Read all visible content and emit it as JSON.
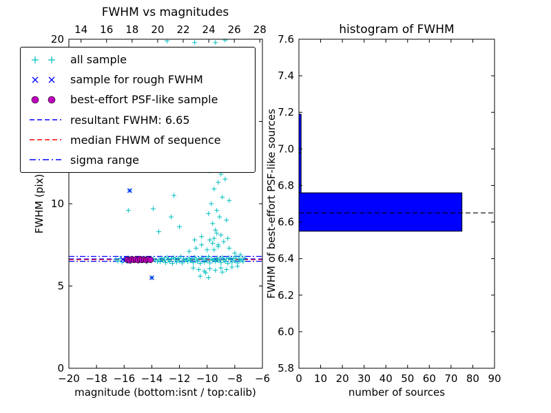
{
  "legend": {
    "items": [
      {
        "label": "all sample",
        "marker": "plus",
        "color": "#00bfbf"
      },
      {
        "label": "sample for rough FWHM",
        "marker": "x",
        "color": "#0000ff"
      },
      {
        "label": "best-effort PSF-like sample",
        "marker": "circle",
        "color": "#bf00bf"
      },
      {
        "label": "resultant FWHM: 6.65",
        "marker": "dashed",
        "color": "#0000ff"
      },
      {
        "label": "median FHWM of sequence",
        "marker": "dashed",
        "color": "#ff0000"
      },
      {
        "label": "sigma range",
        "marker": "dashdot",
        "color": "#0000ff"
      }
    ]
  },
  "chart_data": [
    {
      "type": "scatter",
      "title": "FWHM vs magnitudes",
      "xlabel": "magnitude (bottom:isnt / top:calib)",
      "ylabel": "FWHM (pix)",
      "xlim": [
        -20,
        -6
      ],
      "ylim": [
        0,
        20
      ],
      "top_xlim": [
        13.05,
        28.2
      ],
      "x_tick_values": [
        -20,
        -18,
        -16,
        -14,
        -12,
        -10,
        -8,
        -6
      ],
      "x_tick_labels": [
        "−20",
        "−18",
        "−16",
        "−14",
        "−12",
        "−10",
        "−8",
        "−6"
      ],
      "top_tick_values": [
        14,
        16,
        18,
        20,
        22,
        24,
        26,
        28
      ],
      "top_tick_labels": [
        "14",
        "16",
        "18",
        "20",
        "22",
        "24",
        "26",
        "28"
      ],
      "y_tick_values": [
        0,
        5,
        10,
        15,
        20
      ],
      "y_tick_labels": [
        "0",
        "5",
        "10",
        "15",
        "20"
      ],
      "hlines": [
        {
          "name": "resultant-fwhm",
          "y": 6.65,
          "style": "dashed",
          "color": "#0000ff"
        },
        {
          "name": "median-fhwm",
          "y": 6.6,
          "style": "dashed",
          "color": "#ff0000"
        },
        {
          "name": "sigma-upper",
          "y": 6.8,
          "style": "dashdot",
          "color": "#0000ff"
        },
        {
          "name": "sigma-lower",
          "y": 6.5,
          "style": "dashdot",
          "color": "#0000ff"
        }
      ],
      "series": [
        {
          "name": "all sample",
          "marker": "+",
          "color": "#00bfbf",
          "points": [
            [
              -16.6,
              6.6
            ],
            [
              -16.45,
              6.52
            ],
            [
              -16.3,
              6.67
            ],
            [
              -16.15,
              6.45
            ],
            [
              -16.0,
              6.62
            ],
            [
              -15.85,
              6.55
            ],
            [
              -15.7,
              6.7
            ],
            [
              -15.55,
              6.48
            ],
            [
              -15.4,
              6.63
            ],
            [
              -15.25,
              6.57
            ],
            [
              -15.1,
              6.66
            ],
            [
              -14.95,
              6.5
            ],
            [
              -14.8,
              6.61
            ],
            [
              -14.65,
              6.55
            ],
            [
              -14.5,
              6.68
            ],
            [
              -14.35,
              6.46
            ],
            [
              -14.2,
              6.6
            ],
            [
              -14.05,
              6.53
            ],
            [
              -13.9,
              6.65
            ],
            [
              -13.75,
              6.58
            ],
            [
              -13.6,
              6.49
            ],
            [
              -13.5,
              6.6
            ],
            [
              -13.4,
              6.48
            ],
            [
              -13.3,
              6.7
            ],
            [
              -13.2,
              6.55
            ],
            [
              -13.1,
              6.63
            ],
            [
              -13.0,
              6.42
            ],
            [
              -12.9,
              6.74
            ],
            [
              -12.8,
              6.58
            ],
            [
              -12.7,
              6.5
            ],
            [
              -12.6,
              6.66
            ],
            [
              -12.5,
              6.38
            ],
            [
              -12.4,
              6.72
            ],
            [
              -12.3,
              6.6
            ],
            [
              -12.2,
              6.45
            ],
            [
              -12.1,
              6.68
            ],
            [
              -12.0,
              6.53
            ],
            [
              -11.9,
              6.78
            ],
            [
              -11.8,
              6.4
            ],
            [
              -11.7,
              6.64
            ],
            [
              -11.6,
              6.57
            ],
            [
              -11.5,
              6.6
            ],
            [
              -11.4,
              6.48
            ],
            [
              -11.3,
              6.7
            ],
            [
              -11.2,
              6.55
            ],
            [
              -11.1,
              6.63
            ],
            [
              -11.0,
              6.42
            ],
            [
              -10.9,
              6.74
            ],
            [
              -10.8,
              6.58
            ],
            [
              -10.7,
              6.5
            ],
            [
              -10.6,
              6.66
            ],
            [
              -10.5,
              6.38
            ],
            [
              -10.4,
              6.72
            ],
            [
              -10.3,
              6.6
            ],
            [
              -10.2,
              6.45
            ],
            [
              -10.1,
              6.68
            ],
            [
              -10.0,
              6.53
            ],
            [
              -9.9,
              6.78
            ],
            [
              -9.8,
              6.4
            ],
            [
              -9.7,
              6.64
            ],
            [
              -9.6,
              6.57
            ],
            [
              -9.5,
              6.6
            ],
            [
              -9.4,
              6.48
            ],
            [
              -9.3,
              6.7
            ],
            [
              -9.2,
              6.55
            ],
            [
              -9.1,
              6.63
            ],
            [
              -9.0,
              6.42
            ],
            [
              -8.9,
              6.74
            ],
            [
              -8.8,
              6.58
            ],
            [
              -8.7,
              6.5
            ],
            [
              -8.6,
              6.66
            ],
            [
              -8.5,
              6.38
            ],
            [
              -8.4,
              6.72
            ],
            [
              -8.3,
              6.6
            ],
            [
              -8.2,
              6.45
            ],
            [
              -8.1,
              6.68
            ],
            [
              -8.0,
              6.53
            ],
            [
              -7.9,
              6.78
            ],
            [
              -7.8,
              6.4
            ],
            [
              -7.7,
              6.64
            ],
            [
              -7.6,
              6.57
            ],
            [
              -7.5,
              6.6
            ],
            [
              -7.4,
              6.48
            ],
            [
              -7.3,
              6.7
            ],
            [
              -11.3,
              7.1
            ],
            [
              -11.0,
              6.1
            ],
            [
              -10.8,
              7.3
            ],
            [
              -10.6,
              6.0
            ],
            [
              -10.4,
              7.5
            ],
            [
              -10.2,
              5.9
            ],
            [
              -10.0,
              7.2
            ],
            [
              -9.8,
              6.05
            ],
            [
              -9.6,
              7.6
            ],
            [
              -9.4,
              5.95
            ],
            [
              -9.2,
              7.4
            ],
            [
              -9.0,
              6.1
            ],
            [
              -8.8,
              7.7
            ],
            [
              -8.6,
              6.0
            ],
            [
              -8.4,
              7.3
            ],
            [
              -8.2,
              6.15
            ],
            [
              -8.0,
              7.0
            ],
            [
              -7.8,
              6.2
            ],
            [
              -7.6,
              6.9
            ],
            [
              -10.9,
              7.8
            ],
            [
              -9.5,
              7.9
            ],
            [
              -8.9,
              5.85
            ],
            [
              -10.1,
              5.8
            ],
            [
              -9.3,
              8.2
            ],
            [
              -8.5,
              7.9
            ],
            [
              -9.5,
              7.2
            ],
            [
              -9.2,
              7.5
            ],
            [
              -9.8,
              7.8
            ],
            [
              -9.0,
              8.1
            ],
            [
              -9.4,
              8.4
            ],
            [
              -9.6,
              8.8
            ],
            [
              -9.1,
              9.2
            ],
            [
              -9.3,
              9.6
            ],
            [
              -9.7,
              10.0
            ],
            [
              -8.9,
              10.4
            ],
            [
              -9.5,
              10.9
            ],
            [
              -9.2,
              11.3
            ],
            [
              -9.0,
              11.8
            ],
            [
              -9.4,
              12.2
            ],
            [
              -9.6,
              12.7
            ],
            [
              -9.1,
              13.1
            ],
            [
              -9.3,
              13.6
            ],
            [
              -8.8,
              14.0
            ],
            [
              -9.5,
              14.5
            ],
            [
              -9.0,
              15.0
            ],
            [
              -9.2,
              15.5
            ],
            [
              -9.4,
              16.0
            ],
            [
              -8.9,
              16.6
            ],
            [
              -9.1,
              17.1
            ],
            [
              -9.3,
              17.7
            ],
            [
              -9.6,
              18.2
            ],
            [
              -9.0,
              18.8
            ],
            [
              -9.2,
              19.3
            ],
            [
              -9.4,
              19.8
            ],
            [
              -8.6,
              9.0
            ],
            [
              -8.7,
              11.5
            ],
            [
              -8.5,
              13.0
            ],
            [
              -9.9,
              9.4
            ],
            [
              -9.8,
              12.0
            ],
            [
              -8.4,
              10.2
            ],
            [
              -12.9,
              19.9
            ],
            [
              -10.9,
              19.8
            ],
            [
              -8.7,
              19.95
            ],
            [
              -15.6,
              10.8
            ],
            [
              -15.7,
              9.6
            ],
            [
              -13.9,
              9.7
            ],
            [
              -12.4,
              10.5
            ],
            [
              -12.6,
              9.2
            ],
            [
              -13.5,
              8.3
            ],
            [
              -10.4,
              8.0
            ],
            [
              -14.0,
              5.5
            ],
            [
              -10.5,
              5.6
            ],
            [
              -9.9,
              5.5
            ],
            [
              -12.0,
              8.6
            ]
          ]
        },
        {
          "name": "sample for rough FWHM",
          "marker": "x",
          "color": "#0000ff",
          "points": [
            [
              -16.1,
              6.62
            ],
            [
              -15.95,
              6.55
            ],
            [
              -15.8,
              6.66
            ],
            [
              -15.65,
              6.5
            ],
            [
              -15.5,
              6.6
            ],
            [
              -15.35,
              6.56
            ],
            [
              -15.2,
              6.64
            ],
            [
              -15.05,
              6.58
            ],
            [
              -14.9,
              6.52
            ],
            [
              -14.75,
              6.62
            ],
            [
              -14.6,
              6.55
            ],
            [
              -14.45,
              6.6
            ],
            [
              -15.6,
              10.8
            ],
            [
              -14.0,
              5.5
            ]
          ]
        },
        {
          "name": "best-effort PSF-like sample",
          "marker": "o",
          "color": "#bf00bf",
          "points": [
            [
              -15.75,
              6.6
            ],
            [
              -15.6,
              6.56
            ],
            [
              -15.45,
              6.63
            ],
            [
              -15.3,
              6.58
            ],
            [
              -15.15,
              6.62
            ],
            [
              -15.0,
              6.57
            ],
            [
              -14.85,
              6.64
            ],
            [
              -14.7,
              6.59
            ],
            [
              -14.55,
              6.61
            ],
            [
              -14.4,
              6.57
            ],
            [
              -14.25,
              6.62
            ],
            [
              -14.1,
              6.59
            ]
          ]
        }
      ]
    },
    {
      "type": "bar",
      "orientation": "horizontal",
      "title": "histogram of FWHM",
      "xlabel": "number of sources",
      "ylabel": "FWHM of best-effort PSF-like sources",
      "xlim": [
        0,
        90
      ],
      "ylim": [
        5.8,
        7.6
      ],
      "x_tick_values": [
        0,
        10,
        20,
        30,
        40,
        50,
        60,
        70,
        80,
        90
      ],
      "x_tick_labels": [
        "0",
        "10",
        "20",
        "30",
        "40",
        "50",
        "60",
        "70",
        "80",
        "90"
      ],
      "y_tick_values": [
        5.8,
        6.0,
        6.2,
        6.4,
        6.6,
        6.8,
        7.0,
        7.2,
        7.4,
        7.6
      ],
      "y_tick_labels": [
        "5.8",
        "6.0",
        "6.2",
        "6.4",
        "6.6",
        "6.8",
        "7.0",
        "7.2",
        "7.4",
        "7.6"
      ],
      "bin_edges": [
        6.55,
        6.76,
        6.98,
        7.19
      ],
      "counts": [
        75,
        1,
        1
      ],
      "bar_color": "#0000ff",
      "edge_color": "#000000",
      "dashed_line": {
        "y": 6.65,
        "color": "#000000",
        "style": "dashed"
      }
    }
  ]
}
